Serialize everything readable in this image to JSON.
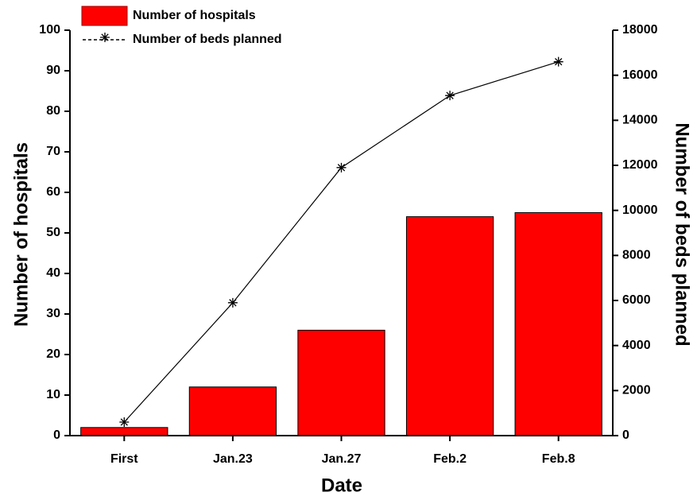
{
  "chart_data": {
    "type": "bar",
    "x_label": "Date",
    "y_label": "Number of hospitals",
    "y2_label": "Number of beds planned",
    "categories": [
      "First",
      "Jan.23",
      "Jan.27",
      "Feb.2",
      "Feb.8"
    ],
    "series": [
      {
        "name": "Number of hospitals",
        "type": "bar",
        "color": "#ff0000",
        "values": [
          2,
          12,
          26,
          54,
          55
        ]
      },
      {
        "name": "Number of beds planned",
        "type": "line",
        "color": "#000000",
        "axis": "y2",
        "values": [
          600,
          5900,
          11900,
          15100,
          16600
        ]
      }
    ],
    "ylim": [
      0,
      100
    ],
    "yticks": [
      0,
      10,
      20,
      30,
      40,
      50,
      60,
      70,
      80,
      90,
      100
    ],
    "y2lim": [
      0,
      18000
    ],
    "y2ticks": [
      0,
      2000,
      4000,
      6000,
      8000,
      10000,
      12000,
      14000,
      16000,
      18000
    ],
    "legend": "top-left",
    "grid": false
  }
}
